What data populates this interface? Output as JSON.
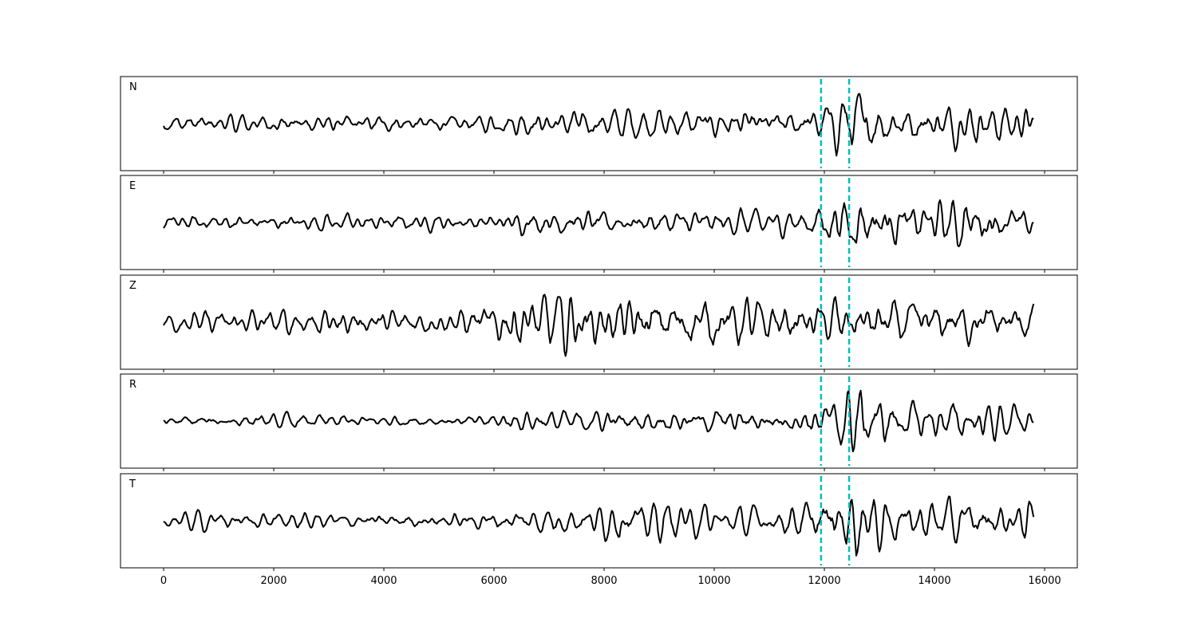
{
  "chart_data": {
    "type": "line",
    "title": "",
    "xlabel": "",
    "ylabel": "",
    "xlim": [
      -783,
      16594
    ],
    "xticks": [
      0,
      2000,
      4000,
      6000,
      8000,
      10000,
      12000,
      14000,
      16000
    ],
    "x_range_data": [
      0,
      15800
    ],
    "grid": false,
    "line_color": "#000000",
    "marker_color": "#00bfbf",
    "markers": [
      11940,
      12450
    ],
    "marker_style": "dashed",
    "envelope_bin_width": 1000,
    "panels": [
      {
        "label": "N",
        "envelope": [
          0.2,
          0.2,
          0.22,
          0.2,
          0.2,
          0.18,
          0.3,
          0.35,
          0.35,
          0.35,
          0.35,
          0.3,
          0.8,
          0.45,
          0.5,
          0.45
        ]
      },
      {
        "label": "E",
        "envelope": [
          0.18,
          0.18,
          0.18,
          0.2,
          0.18,
          0.16,
          0.25,
          0.3,
          0.25,
          0.3,
          0.28,
          0.3,
          0.7,
          0.45,
          0.6,
          0.35
        ]
      },
      {
        "label": "Z",
        "envelope": [
          0.25,
          0.28,
          0.3,
          0.3,
          0.3,
          0.3,
          0.7,
          0.6,
          0.6,
          0.7,
          0.55,
          0.45,
          0.55,
          0.55,
          0.5,
          0.5
        ]
      },
      {
        "label": "R",
        "envelope": [
          0.12,
          0.15,
          0.15,
          0.15,
          0.13,
          0.12,
          0.25,
          0.25,
          0.25,
          0.25,
          0.3,
          0.25,
          0.8,
          0.45,
          0.5,
          0.35
        ]
      },
      {
        "label": "T",
        "envelope": [
          0.22,
          0.22,
          0.22,
          0.2,
          0.2,
          0.2,
          0.35,
          0.35,
          0.5,
          0.4,
          0.35,
          0.4,
          0.9,
          0.5,
          0.6,
          0.5
        ]
      }
    ]
  }
}
